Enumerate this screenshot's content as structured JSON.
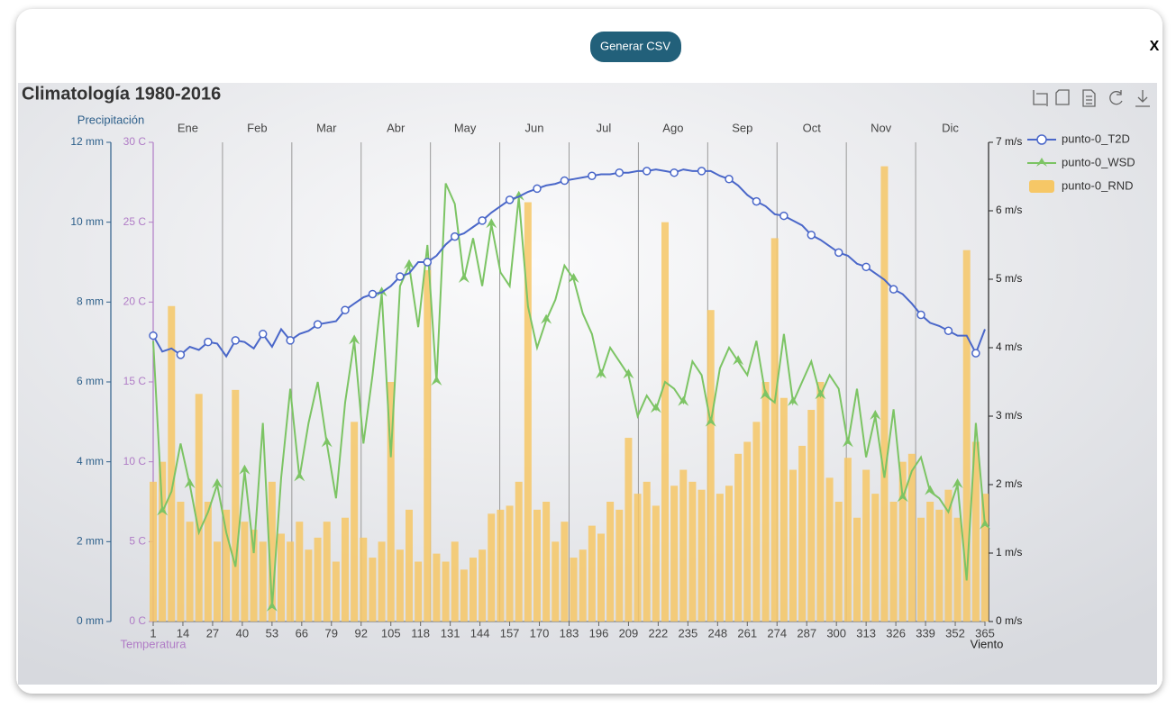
{
  "header": {
    "button": "Generar CSV",
    "close": "X"
  },
  "chart_data": {
    "type": "combo",
    "title": "Climatología 1980-2016",
    "months": [
      "Ene",
      "Feb",
      "Mar",
      "Abr",
      "May",
      "Jun",
      "Jul",
      "Ago",
      "Sep",
      "Oct",
      "Nov",
      "Dic"
    ],
    "y_label": "Precipitación",
    "y2_label": "Temperatura",
    "y3_label": "Viento",
    "xlim": [
      1,
      365
    ],
    "xticks": [
      1,
      14,
      27,
      40,
      53,
      66,
      79,
      92,
      105,
      118,
      131,
      144,
      157,
      170,
      183,
      196,
      209,
      222,
      235,
      248,
      261,
      274,
      287,
      300,
      313,
      326,
      339,
      352,
      365
    ],
    "ylim": [
      0,
      12
    ],
    "yticks": [
      {
        "value": 0,
        "label": "0 mm"
      },
      {
        "value": 2,
        "label": "2 mm"
      },
      {
        "value": 4,
        "label": "4 mm"
      },
      {
        "value": 6,
        "label": "6 mm"
      },
      {
        "value": 8,
        "label": "8 mm"
      },
      {
        "value": 10,
        "label": "10 mm"
      },
      {
        "value": 12,
        "label": "12 mm"
      }
    ],
    "y2lim": [
      0,
      30
    ],
    "y2ticks": [
      {
        "value": 0,
        "label": "0 C"
      },
      {
        "value": 5,
        "label": "5 C"
      },
      {
        "value": 10,
        "label": "10 C"
      },
      {
        "value": 15,
        "label": "15 C"
      },
      {
        "value": 20,
        "label": "20 C"
      },
      {
        "value": 25,
        "label": "25 C"
      },
      {
        "value": 30,
        "label": "30 C"
      }
    ],
    "y3lim": [
      0,
      7
    ],
    "y3ticks": [
      {
        "value": 0,
        "label": "0 m/s"
      },
      {
        "value": 1,
        "label": "1 m/s"
      },
      {
        "value": 2,
        "label": "2 m/s"
      },
      {
        "value": 3,
        "label": "3 m/s"
      },
      {
        "value": 4,
        "label": "4 m/s"
      },
      {
        "value": 5,
        "label": "5 m/s"
      },
      {
        "value": 6,
        "label": "6 m/s"
      },
      {
        "value": 7,
        "label": "7 m/s"
      }
    ],
    "x": [
      1,
      5,
      9,
      13,
      17,
      21,
      25,
      29,
      33,
      37,
      41,
      45,
      49,
      53,
      57,
      61,
      65,
      69,
      73,
      77,
      81,
      85,
      89,
      93,
      97,
      101,
      105,
      109,
      113,
      117,
      121,
      125,
      129,
      133,
      137,
      141,
      145,
      149,
      153,
      157,
      161,
      165,
      169,
      173,
      177,
      181,
      185,
      189,
      193,
      197,
      201,
      205,
      209,
      213,
      217,
      221,
      225,
      229,
      233,
      237,
      241,
      245,
      249,
      253,
      257,
      261,
      265,
      269,
      273,
      277,
      281,
      285,
      289,
      293,
      297,
      301,
      305,
      309,
      313,
      317,
      321,
      325,
      329,
      333,
      337,
      341,
      345,
      349,
      353,
      357,
      361,
      365
    ],
    "legend_position": "right",
    "series": [
      {
        "name": "punto-0_T2D",
        "kind": "line",
        "axis": "y2",
        "color": "#4a67c9",
        "values": [
          17.9,
          16.9,
          17.1,
          16.7,
          17.2,
          17.0,
          17.5,
          17.4,
          16.6,
          17.6,
          17.5,
          17.1,
          18.0,
          17.2,
          18.3,
          17.6,
          18.0,
          18.2,
          18.6,
          18.7,
          18.8,
          19.5,
          19.9,
          20.3,
          20.5,
          20.6,
          21.0,
          21.6,
          21.8,
          22.5,
          22.5,
          22.9,
          23.6,
          24.1,
          24.3,
          24.7,
          25.1,
          25.6,
          26.0,
          26.4,
          26.6,
          26.9,
          27.1,
          27.3,
          27.4,
          27.6,
          27.7,
          27.8,
          27.9,
          28.0,
          28.0,
          28.1,
          28.1,
          28.2,
          28.2,
          28.3,
          28.2,
          28.1,
          28.3,
          28.2,
          28.2,
          28.2,
          27.9,
          27.7,
          27.3,
          26.7,
          26.3,
          26.0,
          25.5,
          25.4,
          25.1,
          24.8,
          24.2,
          23.9,
          23.5,
          23.1,
          22.9,
          22.4,
          22.2,
          21.8,
          21.4,
          20.8,
          20.5,
          19.9,
          19.2,
          18.7,
          18.5,
          18.2,
          17.9,
          17.9,
          16.8,
          18.3
        ]
      },
      {
        "name": "punto-0_WSD",
        "kind": "line",
        "axis": "y3",
        "color": "#7cc464",
        "values": [
          4.1,
          1.6,
          1.9,
          2.6,
          2.0,
          1.3,
          1.6,
          2.0,
          1.3,
          0.8,
          2.2,
          1.0,
          2.9,
          0.2,
          2.1,
          3.4,
          2.1,
          2.9,
          3.5,
          2.6,
          1.8,
          3.2,
          4.1,
          2.6,
          3.6,
          4.8,
          2.4,
          4.9,
          5.2,
          4.3,
          5.5,
          3.5,
          6.4,
          6.1,
          5.0,
          5.6,
          4.9,
          5.8,
          5.1,
          4.9,
          6.2,
          4.6,
          4.0,
          4.4,
          4.7,
          5.2,
          5.0,
          4.5,
          4.2,
          3.6,
          4.0,
          3.8,
          3.6,
          3.0,
          3.3,
          3.1,
          3.5,
          3.4,
          3.2,
          3.8,
          3.6,
          2.9,
          3.7,
          4.0,
          3.8,
          3.6,
          4.1,
          3.3,
          3.2,
          4.2,
          3.2,
          3.5,
          3.8,
          3.3,
          3.6,
          3.4,
          2.6,
          3.4,
          2.4,
          3.0,
          2.1,
          3.1,
          1.8,
          2.2,
          2.4,
          1.9,
          1.8,
          1.6,
          2.0,
          0.6,
          2.9,
          1.4
        ]
      },
      {
        "name": "punto-0_RND",
        "kind": "bar",
        "axis": "y",
        "color": "#f6c766",
        "values": [
          3.5,
          4.0,
          7.9,
          3.0,
          2.5,
          5.7,
          3.0,
          2.0,
          2.8,
          5.8,
          2.5,
          2.3,
          2.0,
          3.5,
          2.2,
          2.0,
          2.5,
          1.8,
          2.1,
          2.5,
          1.5,
          2.6,
          5.0,
          2.1,
          1.6,
          2.0,
          6.0,
          1.8,
          2.8,
          1.5,
          8.8,
          1.7,
          1.5,
          2.0,
          1.3,
          1.6,
          1.8,
          2.7,
          2.8,
          2.9,
          3.5,
          10.5,
          2.8,
          3.0,
          2.0,
          2.5,
          1.6,
          1.8,
          2.4,
          2.2,
          3.0,
          2.8,
          4.6,
          3.2,
          3.5,
          2.9,
          10.0,
          3.4,
          3.8,
          3.5,
          3.3,
          7.8,
          3.2,
          3.4,
          4.2,
          4.5,
          5.0,
          6.0,
          9.6,
          5.6,
          3.8,
          4.4,
          5.3,
          6.0,
          3.6,
          3.0,
          4.1,
          2.6,
          3.8,
          3.2,
          11.4,
          3.0,
          4.0,
          4.2,
          2.6,
          3.0,
          2.8,
          3.3,
          2.6,
          9.3,
          4.5,
          3.2
        ]
      }
    ]
  }
}
